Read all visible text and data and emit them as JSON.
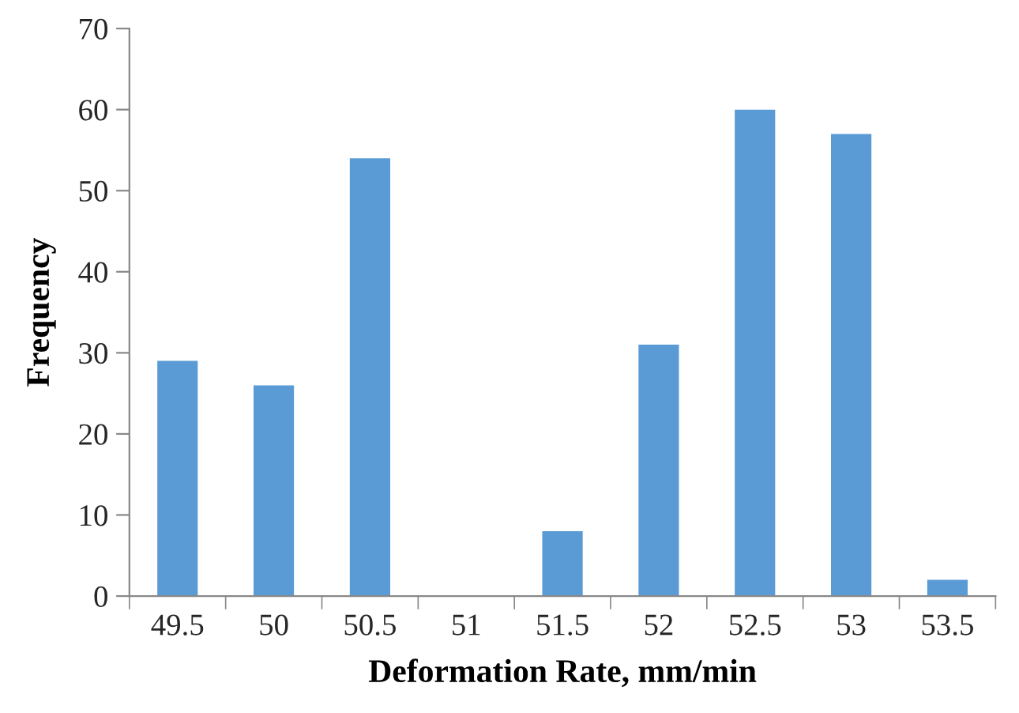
{
  "chart_data": {
    "type": "bar",
    "xlabel": "Deformation Rate, mm/min",
    "ylabel": "Frequency",
    "categories": [
      "49.5",
      "50",
      "50.5",
      "51",
      "51.5",
      "52",
      "52.5",
      "53",
      "53.5"
    ],
    "values": [
      29,
      26,
      54,
      0,
      8,
      31,
      60,
      57,
      2
    ],
    "color": "#5b9bd5",
    "ylim": [
      0,
      70
    ],
    "yticks": [
      0,
      10,
      20,
      30,
      40,
      50,
      60,
      70
    ],
    "grid": false,
    "legend": false
  }
}
